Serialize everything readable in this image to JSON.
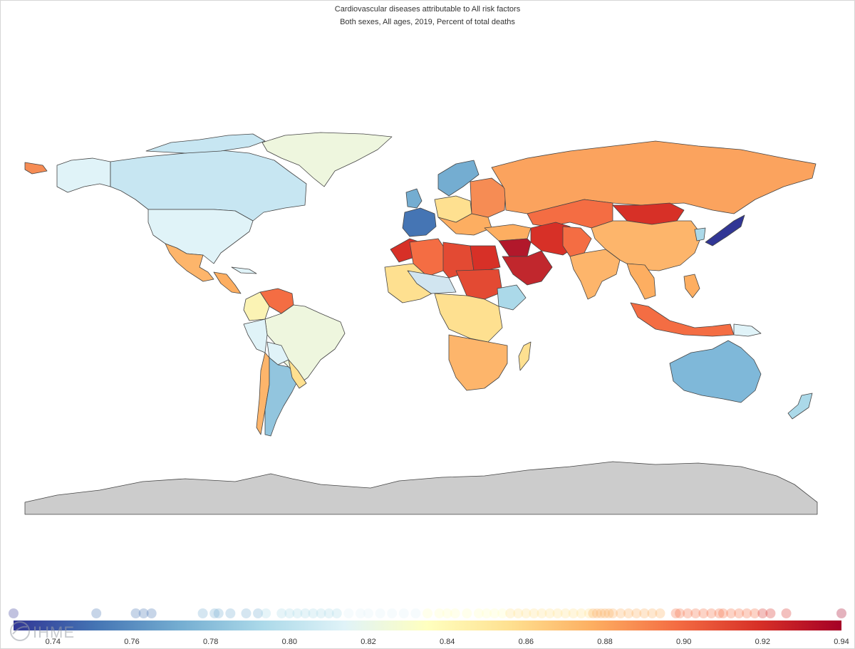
{
  "map": {
    "title": "Cardiovascular diseases attributable to All risk factors",
    "subtitle": "Both sexes, All ages, 2019, Percent of total deaths"
  },
  "legend": {
    "min": 0.73,
    "max": 0.94,
    "ticks": [
      "0.74",
      "0.76",
      "0.78",
      "0.80",
      "0.82",
      "0.84",
      "0.86",
      "0.88",
      "0.90",
      "0.92",
      "0.94"
    ],
    "tick_values": [
      0.74,
      0.76,
      0.78,
      0.8,
      0.82,
      0.84,
      0.86,
      0.88,
      0.9,
      0.92,
      0.94
    ],
    "distribution": [
      0.73,
      0.751,
      0.761,
      0.763,
      0.765,
      0.778,
      0.781,
      0.782,
      0.785,
      0.789,
      0.792,
      0.794,
      0.798,
      0.8,
      0.802,
      0.804,
      0.806,
      0.808,
      0.81,
      0.812,
      0.815,
      0.818,
      0.82,
      0.823,
      0.826,
      0.829,
      0.832,
      0.835,
      0.838,
      0.84,
      0.842,
      0.845,
      0.848,
      0.85,
      0.852,
      0.854,
      0.856,
      0.858,
      0.86,
      0.862,
      0.864,
      0.866,
      0.868,
      0.87,
      0.872,
      0.874,
      0.876,
      0.877,
      0.878,
      0.879,
      0.88,
      0.881,
      0.882,
      0.884,
      0.886,
      0.888,
      0.89,
      0.892,
      0.894,
      0.898,
      0.899,
      0.901,
      0.903,
      0.905,
      0.907,
      0.909,
      0.91,
      0.912,
      0.914,
      0.916,
      0.918,
      0.92,
      0.922,
      0.926,
      0.94
    ],
    "logo": "IHME"
  },
  "colors": {
    "scale": [
      "#313695",
      "#4575b4",
      "#74add1",
      "#abd9e9",
      "#e0f3f8",
      "#ffffbf",
      "#fee090",
      "#fdae61",
      "#f46d43",
      "#d73027",
      "#a50026"
    ],
    "no_data": "#cccccc",
    "border": "#444444"
  }
}
